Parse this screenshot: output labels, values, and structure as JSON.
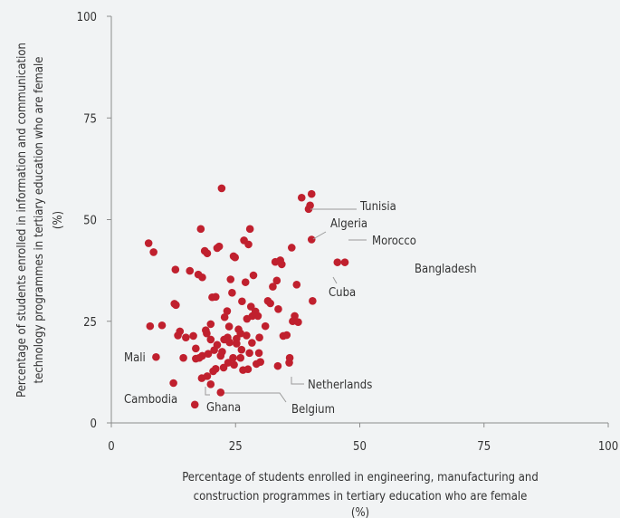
{
  "chart_data": {
    "type": "scatter",
    "xlabel_lines": [
      "Percentage of students enrolled in engineering, manufacturing and",
      "construction programmes in tertiary education who are female",
      "(%)"
    ],
    "ylabel_lines": [
      "Percentage of students enrolled in information and communication",
      "technology programmes in tertiary education who are female",
      "(%)"
    ],
    "xlim": [
      0,
      100
    ],
    "ylim": [
      0,
      100
    ],
    "xticks": [
      0,
      25,
      50,
      75,
      100
    ],
    "yticks": [
      0,
      25,
      50,
      75,
      100
    ],
    "grid": false,
    "marker_color": "#c0202e",
    "axis_color": "#8c8c8c",
    "background": "#f1f3f4",
    "points": [
      [
        7.5,
        44.2
      ],
      [
        8.5,
        42.0
      ],
      [
        7.8,
        23.8
      ],
      [
        10.2,
        24.0
      ],
      [
        9.0,
        16.2
      ],
      [
        12.7,
        29.3
      ],
      [
        12.9,
        37.7
      ],
      [
        13.4,
        21.5
      ],
      [
        13.8,
        22.5
      ],
      [
        14.5,
        16.0
      ],
      [
        15.0,
        21.0
      ],
      [
        15.8,
        37.4
      ],
      [
        16.5,
        21.4
      ],
      [
        17.0,
        18.3
      ],
      [
        17.5,
        36.5
      ],
      [
        18.0,
        47.7
      ],
      [
        18.3,
        35.8
      ],
      [
        18.8,
        42.3
      ],
      [
        19.3,
        41.7
      ],
      [
        19.2,
        22.0
      ],
      [
        20.0,
        24.3
      ],
      [
        20.3,
        30.9
      ],
      [
        20.7,
        17.9
      ],
      [
        21.0,
        31.0
      ],
      [
        21.3,
        43.0
      ],
      [
        21.7,
        43.4
      ],
      [
        22.2,
        57.7
      ],
      [
        22.8,
        26.0
      ],
      [
        23.3,
        27.5
      ],
      [
        23.7,
        23.7
      ],
      [
        24.0,
        35.3
      ],
      [
        24.3,
        32.0
      ],
      [
        24.6,
        41.0
      ],
      [
        24.9,
        40.7
      ],
      [
        25.2,
        20.7
      ],
      [
        25.6,
        23.0
      ],
      [
        26.0,
        22.0
      ],
      [
        26.3,
        29.9
      ],
      [
        26.7,
        44.9
      ],
      [
        27.0,
        34.6
      ],
      [
        27.3,
        25.6
      ],
      [
        27.6,
        43.9
      ],
      [
        27.9,
        47.7
      ],
      [
        28.1,
        28.6
      ],
      [
        28.4,
        26.3
      ],
      [
        28.6,
        36.3
      ],
      [
        29.0,
        27.4
      ],
      [
        29.5,
        26.3
      ],
      [
        31.0,
        23.8
      ],
      [
        31.5,
        30.0
      ],
      [
        32.0,
        29.4
      ],
      [
        32.5,
        33.5
      ],
      [
        33.0,
        39.6
      ],
      [
        33.3,
        35.0
      ],
      [
        33.6,
        28.0
      ],
      [
        34.0,
        40.0
      ],
      [
        34.3,
        39.0
      ],
      [
        34.6,
        21.4
      ],
      [
        35.3,
        21.6
      ],
      [
        35.9,
        16.0
      ],
      [
        36.3,
        43.1
      ],
      [
        36.5,
        25.0
      ],
      [
        36.9,
        26.3
      ],
      [
        37.3,
        34.0
      ],
      [
        37.6,
        24.8
      ],
      [
        38.3,
        55.4
      ],
      [
        39.7,
        52.6
      ],
      [
        40.0,
        53.5
      ],
      [
        40.3,
        56.3
      ],
      [
        40.3,
        45.1
      ],
      [
        40.5,
        30.0
      ],
      [
        33.5,
        14.0
      ],
      [
        35.8,
        14.8
      ],
      [
        27.5,
        13.2
      ],
      [
        26.5,
        13.0
      ],
      [
        24.7,
        14.3
      ],
      [
        23.5,
        14.8
      ],
      [
        22.6,
        13.6
      ],
      [
        21.0,
        13.3
      ],
      [
        20.5,
        12.7
      ],
      [
        19.5,
        17.0
      ],
      [
        18.3,
        16.5
      ],
      [
        17.7,
        16.0
      ],
      [
        17.0,
        15.8
      ],
      [
        22.0,
        16.5
      ],
      [
        24.5,
        16.0
      ],
      [
        26.0,
        16.0
      ],
      [
        27.8,
        17.2
      ],
      [
        29.7,
        17.2
      ],
      [
        30.0,
        15.0
      ],
      [
        22.3,
        17.5
      ],
      [
        23.8,
        19.8
      ],
      [
        25.2,
        19.5
      ],
      [
        26.2,
        18.0
      ],
      [
        28.3,
        19.7
      ],
      [
        21.3,
        19.2
      ],
      [
        20.0,
        20.5
      ],
      [
        22.7,
        20.5
      ],
      [
        23.4,
        21.0
      ],
      [
        29.2,
        14.5
      ],
      [
        13.0,
        29.0
      ],
      [
        19.0,
        22.8
      ],
      [
        29.8,
        21.0
      ],
      [
        27.2,
        21.5
      ],
      [
        18.2,
        11.0
      ],
      [
        19.3,
        11.5
      ],
      [
        20.0,
        9.5
      ],
      [
        22.0,
        7.5
      ],
      [
        12.5,
        9.8
      ],
      [
        16.8,
        4.5
      ],
      [
        45.5,
        39.5
      ],
      [
        47.0,
        39.5
      ]
    ],
    "labeled_points": [
      {
        "name": "Tunisia",
        "x": 40.3,
        "y": 53.5
      },
      {
        "name": "Algeria",
        "x": 40.3,
        "y": 45.1
      },
      {
        "name": "Morocco",
        "x": 46.5,
        "y": 45.1
      },
      {
        "name": "Bangladesh",
        "x": 58.5,
        "y": 38.0
      },
      {
        "name": "Cuba",
        "x": 45.5,
        "y": 39.5
      },
      {
        "name": "Mali",
        "x": 9.0,
        "y": 16.2
      },
      {
        "name": "Netherlands",
        "x": 35.8,
        "y": 14.8
      },
      {
        "name": "Cambodia",
        "x": 16.8,
        "y": 4.5
      },
      {
        "name": "Ghana",
        "x": 20.0,
        "y": 9.5
      },
      {
        "name": "Belgium",
        "x": 22.0,
        "y": 7.5
      }
    ]
  }
}
